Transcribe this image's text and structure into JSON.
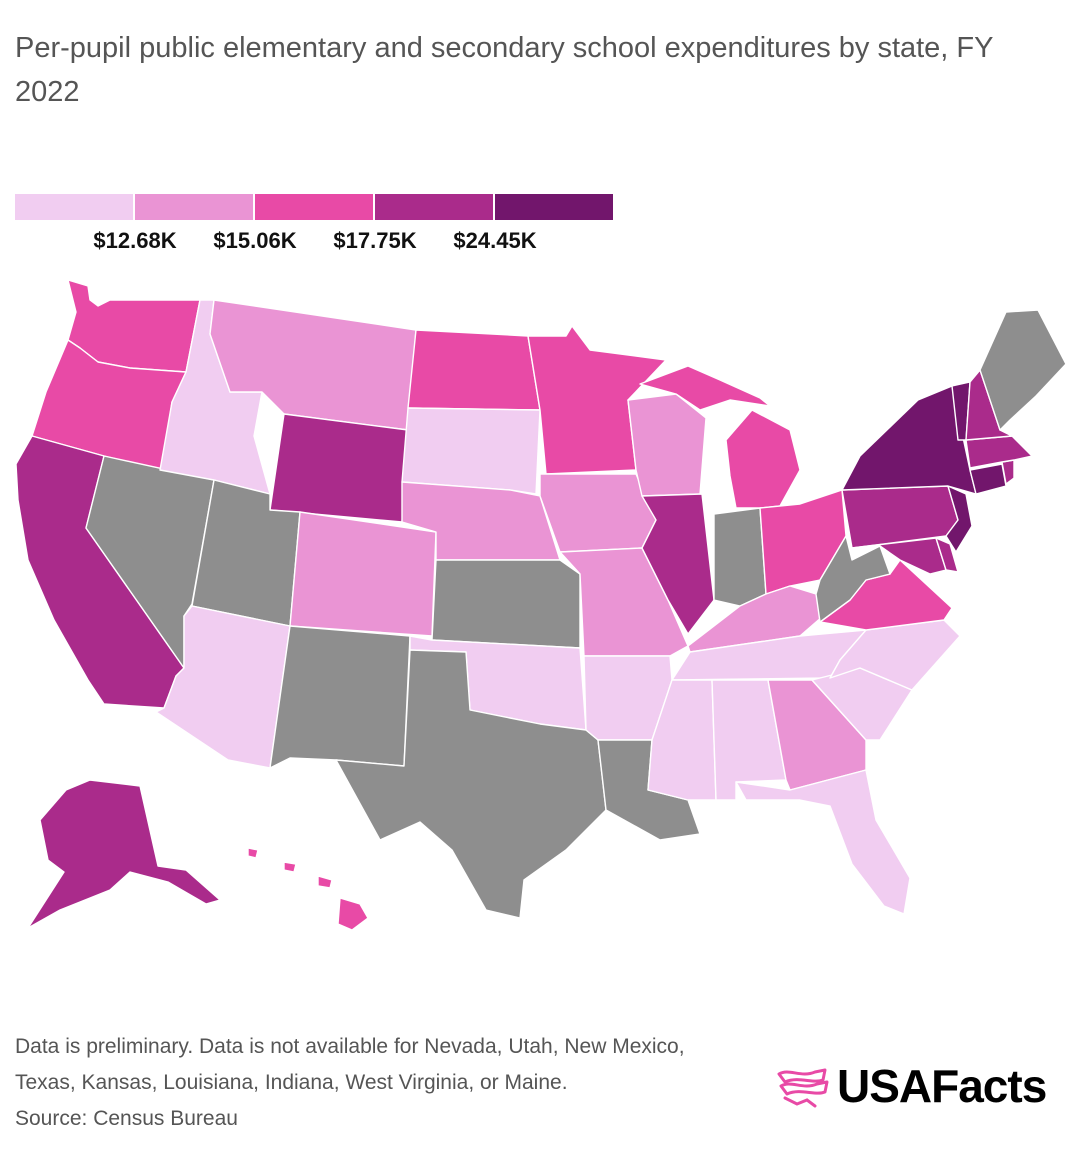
{
  "title": "Per-pupil public elementary and secondary school expenditures by state, FY 2022",
  "legend": {
    "colors": [
      "#f1cdf1",
      "#ea94d4",
      "#e84aa6",
      "#aa2b8b",
      "#72166c"
    ],
    "thresholds": [
      "$12.68K",
      "$15.06K",
      "$17.75K",
      "$24.45K"
    ]
  },
  "no_data_color": "#8e8e8e",
  "map": {
    "states": {
      "WA": 3,
      "OR": 3,
      "CA": 4,
      "ID": 1,
      "MT": 2,
      "WY": 4,
      "NV": -1,
      "UT": -1,
      "AZ": 1,
      "CO": 2,
      "NM": -1,
      "ND": 3,
      "SD": 1,
      "NE": 2,
      "KS": -1,
      "OK": 1,
      "TX": -1,
      "MN": 3,
      "IA": 2,
      "MO": 2,
      "AR": 1,
      "LA": -1,
      "WI": 2,
      "IL": 4,
      "MI": 3,
      "IN": -1,
      "OH": 3,
      "KY": 2,
      "TN": 1,
      "MS": 1,
      "AL": 1,
      "GA": 2,
      "FL": 1,
      "SC": 1,
      "NC": 1,
      "VA": 3,
      "WV": -1,
      "MD": 4,
      "DE": 4,
      "PA": 4,
      "NJ": 5,
      "NY": 5,
      "CT": 5,
      "RI": 4,
      "MA": 4,
      "VT": 5,
      "NH": 4,
      "ME": -1,
      "AK": 4,
      "HI": 3
    }
  },
  "footer": {
    "note": "Data is preliminary. Data is not available for Nevada, Utah, New Mexico, Texas, Kansas, Louisiana, Indiana, West Virginia, or Maine.",
    "source": "Source: Census Bureau"
  },
  "logo": {
    "text": "USAFacts"
  }
}
